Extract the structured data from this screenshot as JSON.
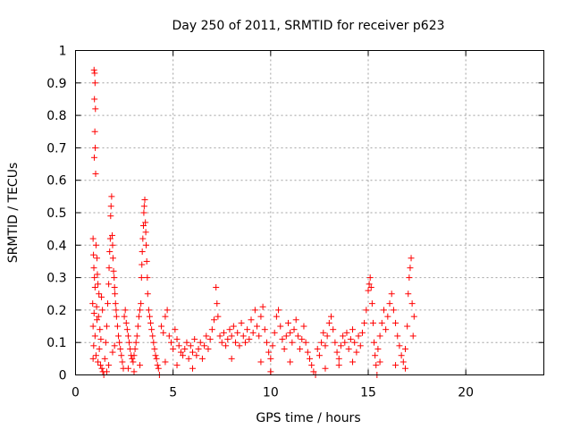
{
  "chart_data": {
    "type": "scatter",
    "title": "Day 250 of 2011, SRMTID for receiver p623",
    "xlabel": "GPS time / hours",
    "ylabel": "SRMTID / TECUs",
    "xlim": [
      0,
      24
    ],
    "ylim": [
      0,
      1
    ],
    "x_ticks": [
      "0",
      "5",
      "10",
      "15",
      "20"
    ],
    "y_ticks": [
      "0",
      "0.1",
      "0.2",
      "0.3",
      "0.4",
      "0.5",
      "0.6",
      "0.7",
      "0.8",
      "0.9",
      "1"
    ],
    "grid": true,
    "marker": "+",
    "color": "#ff0000",
    "series": [
      {
        "values": [
          [
            0.95,
            0.94
          ],
          [
            0.98,
            0.93
          ],
          [
            1.0,
            0.9
          ],
          [
            0.97,
            0.85
          ],
          [
            1.02,
            0.82
          ],
          [
            0.99,
            0.75
          ],
          [
            1.01,
            0.7
          ],
          [
            0.96,
            0.67
          ],
          [
            1.03,
            0.62
          ],
          [
            0.9,
            0.42
          ],
          [
            1.05,
            0.4
          ],
          [
            0.92,
            0.37
          ],
          [
            1.1,
            0.36
          ],
          [
            0.94,
            0.33
          ],
          [
            1.12,
            0.31
          ],
          [
            0.97,
            0.3
          ],
          [
            1.15,
            0.28
          ],
          [
            1.0,
            0.27
          ],
          [
            1.2,
            0.25
          ],
          [
            0.88,
            0.22
          ],
          [
            1.08,
            0.21
          ],
          [
            0.95,
            0.19
          ],
          [
            1.18,
            0.18
          ],
          [
            0.9,
            0.15
          ],
          [
            1.25,
            0.14
          ],
          [
            1.0,
            0.12
          ],
          [
            1.3,
            0.11
          ],
          [
            0.93,
            0.09
          ],
          [
            1.22,
            0.08
          ],
          [
            1.05,
            0.06
          ],
          [
            0.9,
            0.05
          ],
          [
            1.15,
            0.04
          ],
          [
            1.28,
            0.03
          ],
          [
            1.35,
            0.02
          ],
          [
            1.4,
            0.01
          ],
          [
            1.45,
            0.0
          ],
          [
            1.1,
            0.17
          ],
          [
            1.33,
            0.24
          ],
          [
            1.38,
            0.2
          ],
          [
            1.5,
            0.05
          ],
          [
            1.55,
            0.1
          ],
          [
            1.6,
            0.15
          ],
          [
            1.65,
            0.22
          ],
          [
            1.7,
            0.28
          ],
          [
            1.72,
            0.33
          ],
          [
            1.75,
            0.38
          ],
          [
            1.78,
            0.42
          ],
          [
            1.8,
            0.49
          ],
          [
            1.82,
            0.52
          ],
          [
            1.85,
            0.55
          ],
          [
            1.88,
            0.43
          ],
          [
            1.9,
            0.4
          ],
          [
            1.92,
            0.36
          ],
          [
            1.95,
            0.32
          ],
          [
            1.98,
            0.3
          ],
          [
            2.0,
            0.27
          ],
          [
            2.02,
            0.25
          ],
          [
            2.05,
            0.22
          ],
          [
            2.08,
            0.2
          ],
          [
            2.1,
            0.18
          ],
          [
            2.15,
            0.15
          ],
          [
            2.2,
            0.12
          ],
          [
            2.25,
            0.1
          ],
          [
            2.3,
            0.08
          ],
          [
            2.35,
            0.06
          ],
          [
            2.4,
            0.04
          ],
          [
            2.45,
            0.02
          ],
          [
            1.6,
            0.01
          ],
          [
            1.7,
            0.03
          ],
          [
            1.9,
            0.07
          ],
          [
            2.0,
            0.09
          ],
          [
            2.5,
            0.18
          ],
          [
            2.55,
            0.2
          ],
          [
            2.6,
            0.16
          ],
          [
            2.65,
            0.14
          ],
          [
            2.7,
            0.12
          ],
          [
            2.75,
            0.1
          ],
          [
            2.8,
            0.08
          ],
          [
            2.85,
            0.06
          ],
          [
            2.9,
            0.05
          ],
          [
            2.95,
            0.04
          ],
          [
            3.0,
            0.06
          ],
          [
            3.05,
            0.08
          ],
          [
            3.1,
            0.1
          ],
          [
            3.15,
            0.12
          ],
          [
            3.2,
            0.15
          ],
          [
            3.25,
            0.18
          ],
          [
            3.3,
            0.2
          ],
          [
            3.35,
            0.22
          ],
          [
            3.38,
            0.3
          ],
          [
            3.4,
            0.34
          ],
          [
            3.42,
            0.38
          ],
          [
            3.45,
            0.42
          ],
          [
            3.48,
            0.46
          ],
          [
            3.5,
            0.5
          ],
          [
            3.52,
            0.52
          ],
          [
            3.55,
            0.54
          ],
          [
            3.58,
            0.47
          ],
          [
            3.6,
            0.44
          ],
          [
            3.62,
            0.4
          ],
          [
            3.65,
            0.35
          ],
          [
            3.68,
            0.3
          ],
          [
            3.7,
            0.25
          ],
          [
            3.75,
            0.2
          ],
          [
            3.8,
            0.18
          ],
          [
            3.85,
            0.16
          ],
          [
            3.9,
            0.14
          ],
          [
            3.95,
            0.12
          ],
          [
            4.0,
            0.1
          ],
          [
            4.05,
            0.08
          ],
          [
            4.1,
            0.06
          ],
          [
            4.15,
            0.05
          ],
          [
            4.2,
            0.03
          ],
          [
            4.25,
            0.02
          ],
          [
            4.3,
            0.0
          ],
          [
            2.7,
            0.02
          ],
          [
            3.0,
            0.01
          ],
          [
            3.3,
            0.03
          ],
          [
            4.4,
            0.15
          ],
          [
            4.5,
            0.13
          ],
          [
            4.6,
            0.18
          ],
          [
            4.7,
            0.2
          ],
          [
            4.8,
            0.12
          ],
          [
            4.9,
            0.1
          ],
          [
            5.0,
            0.08
          ],
          [
            5.1,
            0.14
          ],
          [
            5.2,
            0.11
          ],
          [
            5.3,
            0.09
          ],
          [
            5.4,
            0.07
          ],
          [
            5.5,
            0.06
          ],
          [
            5.6,
            0.08
          ],
          [
            5.7,
            0.1
          ],
          [
            5.8,
            0.05
          ],
          [
            5.9,
            0.09
          ],
          [
            6.0,
            0.07
          ],
          [
            6.1,
            0.11
          ],
          [
            6.2,
            0.06
          ],
          [
            6.3,
            0.08
          ],
          [
            6.4,
            0.1
          ],
          [
            6.5,
            0.05
          ],
          [
            6.6,
            0.09
          ],
          [
            6.7,
            0.12
          ],
          [
            6.8,
            0.08
          ],
          [
            6.9,
            0.11
          ],
          [
            7.0,
            0.14
          ],
          [
            7.1,
            0.17
          ],
          [
            7.2,
            0.27
          ],
          [
            7.25,
            0.22
          ],
          [
            7.3,
            0.18
          ],
          [
            7.4,
            0.12
          ],
          [
            7.5,
            0.1
          ],
          [
            7.6,
            0.13
          ],
          [
            7.7,
            0.09
          ],
          [
            7.8,
            0.11
          ],
          [
            7.9,
            0.14
          ],
          [
            8.0,
            0.12
          ],
          [
            8.1,
            0.15
          ],
          [
            8.2,
            0.1
          ],
          [
            8.3,
            0.13
          ],
          [
            8.4,
            0.09
          ],
          [
            8.5,
            0.16
          ],
          [
            8.6,
            0.12
          ],
          [
            8.7,
            0.1
          ],
          [
            8.8,
            0.14
          ],
          [
            8.9,
            0.11
          ],
          [
            9.0,
            0.17
          ],
          [
            9.1,
            0.13
          ],
          [
            9.2,
            0.2
          ],
          [
            9.3,
            0.15
          ],
          [
            9.4,
            0.12
          ],
          [
            9.5,
            0.18
          ],
          [
            9.6,
            0.21
          ],
          [
            9.7,
            0.14
          ],
          [
            9.8,
            0.1
          ],
          [
            9.9,
            0.07
          ],
          [
            10.0,
            0.05
          ],
          [
            10.1,
            0.09
          ],
          [
            10.2,
            0.13
          ],
          [
            10.3,
            0.18
          ],
          [
            10.4,
            0.2
          ],
          [
            10.5,
            0.15
          ],
          [
            10.6,
            0.11
          ],
          [
            10.7,
            0.08
          ],
          [
            10.8,
            0.12
          ],
          [
            10.9,
            0.16
          ],
          [
            11.0,
            0.13
          ],
          [
            11.1,
            0.1
          ],
          [
            11.2,
            0.14
          ],
          [
            11.3,
            0.17
          ],
          [
            11.4,
            0.12
          ],
          [
            11.5,
            0.08
          ],
          [
            11.6,
            0.11
          ],
          [
            11.7,
            0.15
          ],
          [
            11.8,
            0.1
          ],
          [
            11.9,
            0.07
          ],
          [
            12.0,
            0.05
          ],
          [
            12.1,
            0.03
          ],
          [
            12.2,
            0.01
          ],
          [
            4.6,
            0.04
          ],
          [
            5.2,
            0.03
          ],
          [
            6.0,
            0.02
          ],
          [
            8.0,
            0.05
          ],
          [
            9.5,
            0.04
          ],
          [
            10.0,
            0.01
          ],
          [
            11.0,
            0.04
          ],
          [
            12.3,
            0.0
          ],
          [
            12.4,
            0.08
          ],
          [
            12.5,
            0.06
          ],
          [
            12.6,
            0.1
          ],
          [
            12.7,
            0.13
          ],
          [
            12.8,
            0.09
          ],
          [
            12.9,
            0.12
          ],
          [
            13.0,
            0.16
          ],
          [
            13.1,
            0.18
          ],
          [
            13.2,
            0.14
          ],
          [
            13.3,
            0.1
          ],
          [
            13.4,
            0.07
          ],
          [
            13.5,
            0.05
          ],
          [
            13.6,
            0.09
          ],
          [
            13.7,
            0.12
          ],
          [
            13.8,
            0.1
          ],
          [
            13.9,
            0.13
          ],
          [
            14.0,
            0.08
          ],
          [
            14.1,
            0.11
          ],
          [
            14.2,
            0.14
          ],
          [
            14.3,
            0.1
          ],
          [
            14.4,
            0.07
          ],
          [
            14.5,
            0.12
          ],
          [
            14.6,
            0.09
          ],
          [
            14.7,
            0.13
          ],
          [
            14.8,
            0.16
          ],
          [
            14.9,
            0.2
          ],
          [
            15.0,
            0.26
          ],
          [
            15.05,
            0.28
          ],
          [
            15.1,
            0.3
          ],
          [
            15.15,
            0.27
          ],
          [
            15.2,
            0.22
          ],
          [
            15.25,
            0.16
          ],
          [
            15.3,
            0.1
          ],
          [
            15.35,
            0.06
          ],
          [
            15.4,
            0.03
          ],
          [
            15.45,
            0.0
          ],
          [
            15.5,
            0.08
          ],
          [
            15.6,
            0.12
          ],
          [
            15.7,
            0.16
          ],
          [
            15.8,
            0.2
          ],
          [
            15.9,
            0.14
          ],
          [
            16.0,
            0.18
          ],
          [
            16.1,
            0.22
          ],
          [
            16.2,
            0.25
          ],
          [
            16.3,
            0.2
          ],
          [
            16.4,
            0.16
          ],
          [
            16.5,
            0.12
          ],
          [
            16.6,
            0.09
          ],
          [
            16.7,
            0.06
          ],
          [
            16.8,
            0.04
          ],
          [
            16.9,
            0.08
          ],
          [
            17.0,
            0.15
          ],
          [
            17.05,
            0.25
          ],
          [
            17.1,
            0.3
          ],
          [
            17.15,
            0.33
          ],
          [
            17.2,
            0.36
          ],
          [
            17.25,
            0.22
          ],
          [
            17.3,
            0.12
          ],
          [
            17.35,
            0.18
          ],
          [
            12.8,
            0.02
          ],
          [
            13.5,
            0.03
          ],
          [
            14.2,
            0.04
          ],
          [
            15.6,
            0.04
          ],
          [
            16.4,
            0.03
          ],
          [
            16.9,
            0.02
          ]
        ]
      }
    ]
  }
}
